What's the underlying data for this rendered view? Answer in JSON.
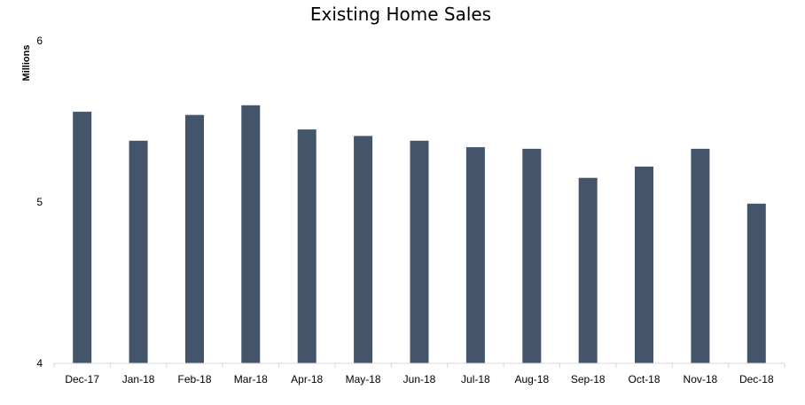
{
  "chart_data": {
    "type": "bar",
    "title": "Existing Home Sales",
    "xlabel": "",
    "ylabel": "Millions",
    "ylim": [
      4,
      6
    ],
    "yticks": [
      "4",
      "5",
      "6"
    ],
    "grid": false,
    "legend": "none",
    "categories": [
      "Dec-17",
      "Jan-18",
      "Feb-18",
      "Mar-18",
      "Apr-18",
      "May-18",
      "Jun-18",
      "Jul-18",
      "Aug-18",
      "Sep-18",
      "Oct-18",
      "Nov-18",
      "Dec-18"
    ],
    "values": [
      5.56,
      5.38,
      5.54,
      5.6,
      5.45,
      5.41,
      5.38,
      5.34,
      5.33,
      5.15,
      5.22,
      5.33,
      4.99
    ],
    "colors": {
      "bar": "#44546A",
      "axis": "#D9D9D9"
    }
  }
}
